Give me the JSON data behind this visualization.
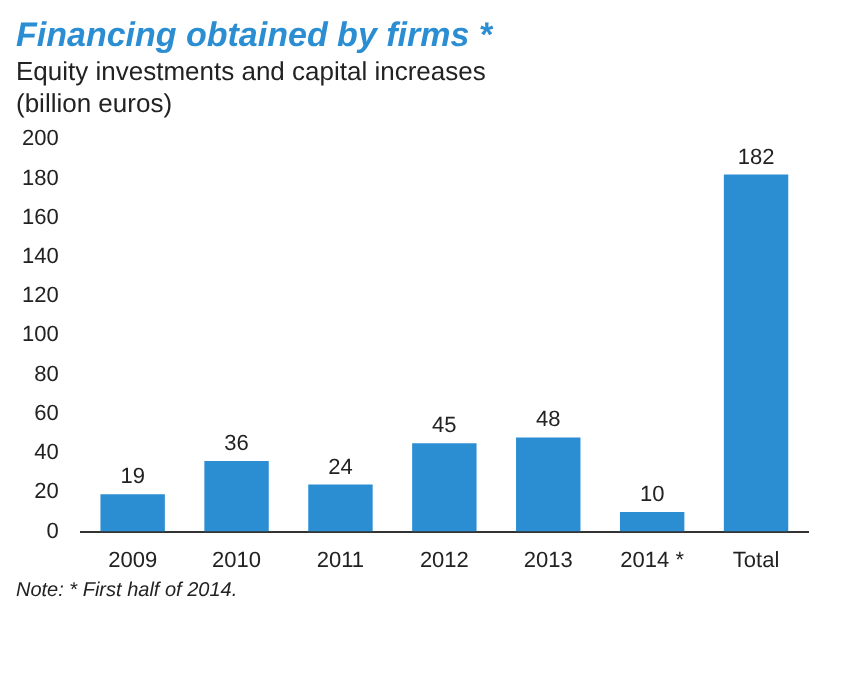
{
  "chart_data": {
    "type": "bar",
    "title": "Financing obtained by firms *",
    "subtitle": "Equity investments and capital increases (billion euros)",
    "categories": [
      "2009",
      "2010",
      "2011",
      "2012",
      "2013",
      "2014 *",
      "Total"
    ],
    "values": [
      19,
      36,
      24,
      45,
      48,
      10,
      182
    ],
    "color": "#2b8ed3",
    "ylim": [
      0,
      200
    ],
    "yticks": [
      0,
      20,
      40,
      60,
      80,
      100,
      120,
      140,
      160,
      180,
      200
    ],
    "grid": false,
    "data_labels": true,
    "annotations": [
      "Note: * First half of 2014."
    ]
  }
}
